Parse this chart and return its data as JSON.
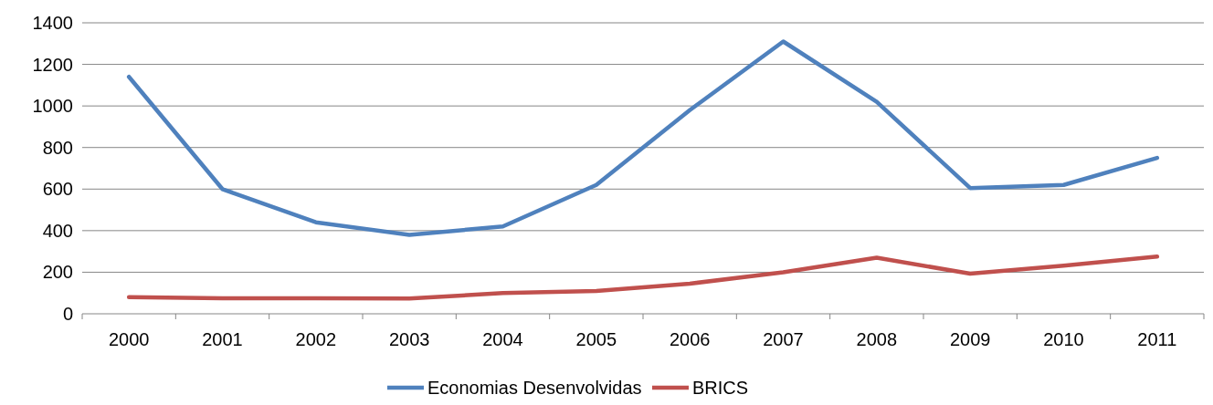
{
  "chart_data": {
    "type": "line",
    "categories": [
      "2000",
      "2001",
      "2002",
      "2003",
      "2004",
      "2005",
      "2006",
      "2007",
      "2008",
      "2009",
      "2010",
      "2011"
    ],
    "series": [
      {
        "name": "Economias Desenvolvidas",
        "color": "#4f81bd",
        "values": [
          1140,
          600,
          440,
          380,
          420,
          620,
          980,
          1310,
          1020,
          605,
          620,
          750
        ]
      },
      {
        "name": "BRICS",
        "color": "#c0504d",
        "values": [
          80,
          75,
          75,
          73,
          100,
          110,
          145,
          200,
          270,
          193,
          232,
          275
        ]
      }
    ],
    "ylim": [
      0,
      1400
    ],
    "yticks": [
      0,
      200,
      400,
      600,
      800,
      1000,
      1200,
      1400
    ],
    "grid": "y",
    "legend": "bottom",
    "marker": "none",
    "line_style": "solid"
  }
}
